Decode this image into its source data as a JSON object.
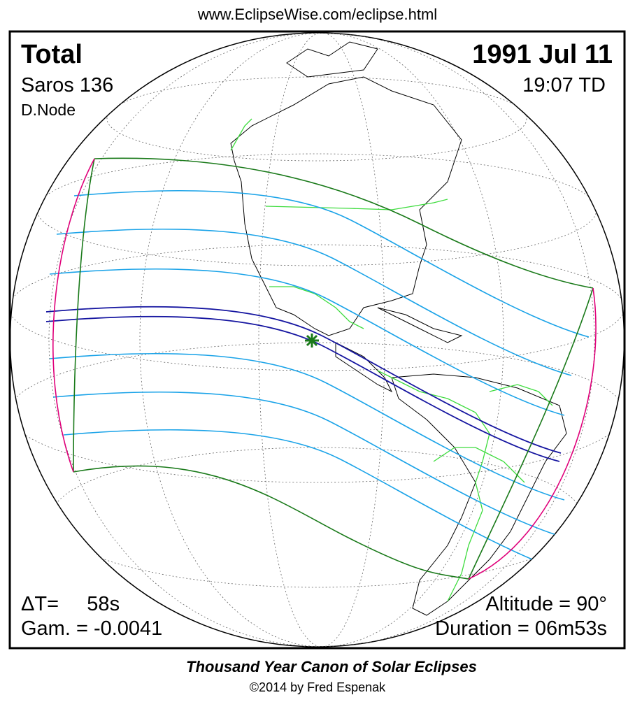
{
  "header": {
    "url": "www.EclipseWise.com/eclipse.html"
  },
  "eclipse": {
    "type": "Total",
    "date": "1991 Jul 11",
    "saros": "Saros 136",
    "time": "19:07 TD",
    "node": "D.Node",
    "delta_t": "ΔT=     58s",
    "gamma": "Gam. = -0.0041",
    "altitude": "Altitude = 90°",
    "duration": "Duration = 06m53s"
  },
  "footer": {
    "title": "Thousand Year Canon of Solar Eclipses",
    "credit": "©2014 by Fred Espenak"
  }
}
